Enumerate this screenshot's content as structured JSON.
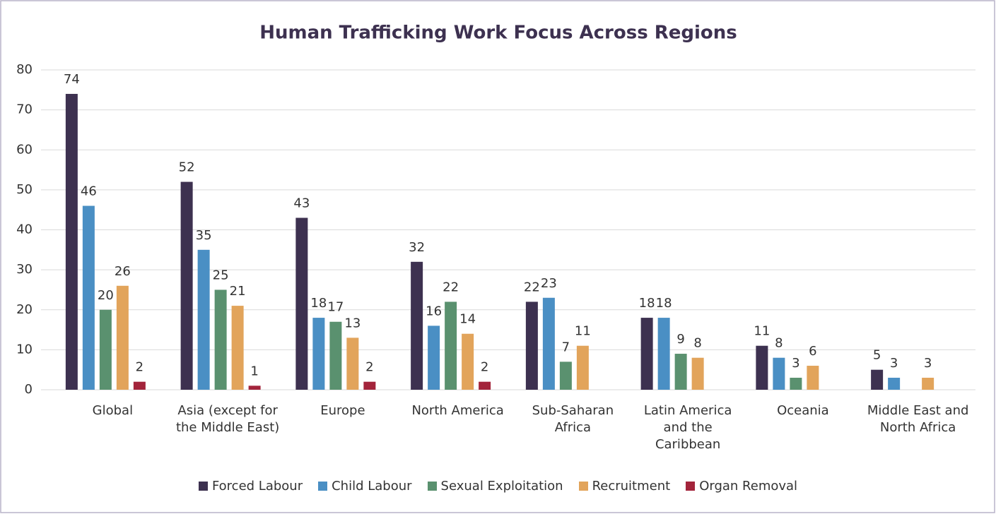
{
  "chart_data": {
    "type": "bar",
    "title": "Human Trafficking Work Focus Across Regions",
    "categories": [
      "Global",
      "Asia (except for the Middle East)",
      "Europe",
      "North America",
      "Sub-Saharan Africa",
      "Latin America and the Caribbean",
      "Oceania",
      "Middle East and North Africa"
    ],
    "series": [
      {
        "name": "Forced Labour",
        "color": "#3d3150",
        "values": [
          74,
          52,
          43,
          32,
          22,
          18,
          11,
          5
        ]
      },
      {
        "name": "Child Labour",
        "color": "#4a8fc4",
        "values": [
          46,
          35,
          18,
          16,
          23,
          18,
          8,
          3
        ]
      },
      {
        "name": "Sexual Exploitation",
        "color": "#5a916f",
        "values": [
          20,
          25,
          17,
          22,
          7,
          9,
          3,
          null
        ]
      },
      {
        "name": "Recruitment",
        "color": "#e2a45b",
        "values": [
          26,
          21,
          13,
          14,
          11,
          8,
          6,
          3
        ]
      },
      {
        "name": "Organ Removal",
        "color": "#a3243b",
        "values": [
          2,
          1,
          2,
          2,
          null,
          null,
          null,
          null
        ]
      }
    ],
    "ylim": [
      0,
      80
    ],
    "yticks": [
      0,
      10,
      20,
      30,
      40,
      50,
      60,
      70,
      80
    ],
    "grid": true,
    "legend": "bottom"
  }
}
